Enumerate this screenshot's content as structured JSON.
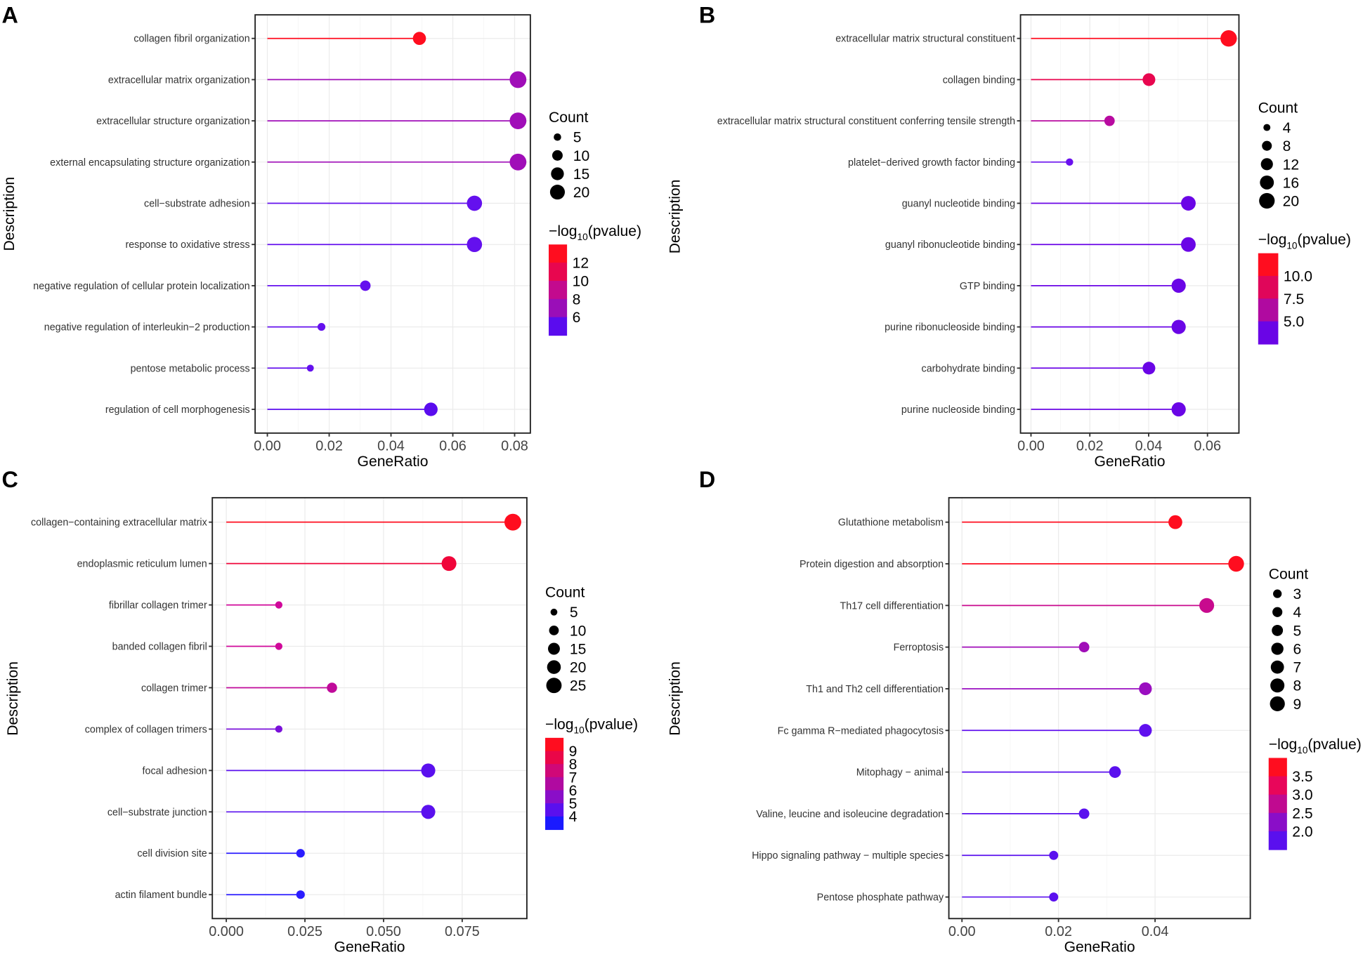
{
  "chart_data": [
    {
      "panel_label": "A",
      "type": "lollipop",
      "xlabel": "GeneRatio",
      "ylabel": "Description",
      "xlim": [
        0,
        0.082
      ],
      "xticks": [
        0,
        0.02,
        0.04,
        0.06,
        0.08
      ],
      "xtick_labels": [
        "0.00",
        "0.02",
        "0.04",
        "0.06",
        "0.08"
      ],
      "size_legend": {
        "title": "Count",
        "values": [
          5,
          10,
          15,
          20
        ]
      },
      "color_legend": {
        "title_prefix": "−log",
        "title_sub": "10",
        "title_suffix": "(pvalue)",
        "labels": [
          "12",
          "10",
          "8",
          "6"
        ],
        "colors": [
          "#FF0D1F",
          "#E8064F",
          "#C30A8E",
          "#9A0EB8",
          "#5A0CEE"
        ]
      },
      "categories": [
        "collagen fibril organization",
        "extracellular matrix organization",
        "extracellular structure organization",
        "external encapsulating structure organization",
        "cell−substrate adhesion",
        "response to oxidative stress",
        "negative regulation of cellular protein localization",
        "negative regulation of interleukin−2 production",
        "pentose metabolic process",
        "regulation of cell morphogenesis"
      ],
      "gene_ratio": [
        0.0492,
        0.0811,
        0.0811,
        0.0811,
        0.067,
        0.067,
        0.0317,
        0.0175,
        0.0139,
        0.0529
      ],
      "count": [
        14,
        23,
        23,
        23,
        19,
        19,
        9,
        5,
        4,
        15
      ],
      "colors": [
        "#FF0D1F",
        "#A00EB8",
        "#A00EB8",
        "#A00EB8",
        "#6410EE",
        "#6410EE",
        "#6410EE",
        "#6410EE",
        "#6410EE",
        "#5A0CEE"
      ]
    },
    {
      "panel_label": "B",
      "type": "lollipop",
      "xlabel": "GeneRatio",
      "ylabel": "Description",
      "xlim": [
        0,
        0.07
      ],
      "xticks": [
        0,
        0.02,
        0.04,
        0.06
      ],
      "xtick_labels": [
        "0.00",
        "0.02",
        "0.04",
        "0.06"
      ],
      "size_legend": {
        "title": "Count",
        "values": [
          4,
          8,
          12,
          16,
          20
        ]
      },
      "color_legend": {
        "title_prefix": "−log",
        "title_sub": "10",
        "title_suffix": "(pvalue)",
        "labels": [
          "10.0",
          "7.5",
          "5.0"
        ],
        "colors": [
          "#FF0D1F",
          "#E0065A",
          "#B00AA0",
          "#6A05E6"
        ]
      },
      "categories": [
        "extracellular matrix structural constituent",
        "collagen binding",
        "extracellular matrix structural constituent conferring tensile strength",
        "platelet−derived growth factor binding",
        "guanyl nucleotide binding",
        "guanyl ribonucleotide binding",
        "GTP binding",
        "purine ribonucleoside binding",
        "carbohydrate binding",
        "purine nucleoside binding"
      ],
      "gene_ratio": [
        0.0672,
        0.0401,
        0.0267,
        0.0131,
        0.0535,
        0.0535,
        0.0502,
        0.0502,
        0.0401,
        0.0502
      ],
      "count": [
        20,
        12,
        8,
        4,
        16,
        16,
        15,
        15,
        12,
        15
      ],
      "colors": [
        "#FF0D1F",
        "#E8064F",
        "#B80AA0",
        "#6A10EE",
        "#6A05E6",
        "#6A05E6",
        "#6A05E6",
        "#6A05E6",
        "#6A05E6",
        "#6A05E6"
      ]
    },
    {
      "panel_label": "C",
      "type": "lollipop",
      "xlabel": "GeneRatio",
      "ylabel": "Description",
      "xlim": [
        0,
        0.095
      ],
      "xticks": [
        0,
        0.025,
        0.05,
        0.075
      ],
      "xtick_labels": [
        "0.000",
        "0.025",
        "0.050",
        "0.075"
      ],
      "size_legend": {
        "title": "Count",
        "values": [
          5,
          10,
          15,
          20,
          25
        ]
      },
      "color_legend": {
        "title_prefix": "−log",
        "title_sub": "10",
        "title_suffix": "(pvalue)",
        "labels": [
          "9",
          "8",
          "7",
          "6",
          "5",
          "4"
        ],
        "colors": [
          "#FF0D1F",
          "#EA0648",
          "#D00878",
          "#B00AA0",
          "#8A0EC8",
          "#5A10EE",
          "#1A1AFF"
        ]
      },
      "categories": [
        "collagen−containing extracellular matrix",
        "endoplasmic reticulum lumen",
        "fibrillar collagen trimer",
        "banded collagen fibril",
        "collagen trimer",
        "complex of collagen trimers",
        "focal adhesion",
        "cell−substrate junction",
        "cell division site",
        "actin filament bundle"
      ],
      "gene_ratio": [
        0.0911,
        0.0708,
        0.0167,
        0.0167,
        0.0336,
        0.0167,
        0.0642,
        0.0642,
        0.0236,
        0.0236
      ],
      "count": [
        27,
        21,
        5,
        5,
        10,
        5,
        19,
        19,
        7,
        7
      ],
      "colors": [
        "#FF0D1F",
        "#F0063A",
        "#D0089A",
        "#D0089A",
        "#C00A9A",
        "#7A10DA",
        "#5A10EE",
        "#5A10EE",
        "#2A1CFF",
        "#2A1CFF"
      ]
    },
    {
      "panel_label": "D",
      "type": "lollipop",
      "xlabel": "GeneRatio",
      "ylabel": "Description",
      "xlim": [
        0,
        0.058
      ],
      "xticks": [
        0,
        0.02,
        0.04
      ],
      "xtick_labels": [
        "0.00",
        "0.02",
        "0.04"
      ],
      "size_legend": {
        "title": "Count",
        "values": [
          3,
          4,
          5,
          6,
          7,
          8,
          9
        ]
      },
      "color_legend": {
        "title_prefix": "−log",
        "title_sub": "10",
        "title_suffix": "(pvalue)",
        "labels": [
          "3.5",
          "3.0",
          "2.5",
          "2.0"
        ],
        "colors": [
          "#FF0D1F",
          "#E8065A",
          "#C00A90",
          "#8A0EC8",
          "#5A10EE"
        ]
      },
      "categories": [
        "Glutathione metabolism",
        "Protein digestion and absorption",
        "Th17 cell differentiation",
        "Ferroptosis",
        "Th1 and Th2 cell differentiation",
        "Fc gamma R−mediated phagocytosis",
        "Mitophagy − animal",
        "Valine, leucine and isoleucine degradation",
        "Hippo signaling pathway − multiple species",
        "Pentose phosphate pathway"
      ],
      "gene_ratio": [
        0.0442,
        0.0568,
        0.0507,
        0.0253,
        0.038,
        0.038,
        0.0317,
        0.0253,
        0.019,
        0.019
      ],
      "count": [
        7,
        9,
        8,
        4,
        6,
        6,
        5,
        4,
        3,
        3
      ],
      "colors": [
        "#FF0D1F",
        "#FF0D1F",
        "#C80A8E",
        "#A00EB8",
        "#9A0EC0",
        "#6010EE",
        "#5A10EE",
        "#5A10EE",
        "#5A10EE",
        "#5A10EE"
      ]
    }
  ]
}
